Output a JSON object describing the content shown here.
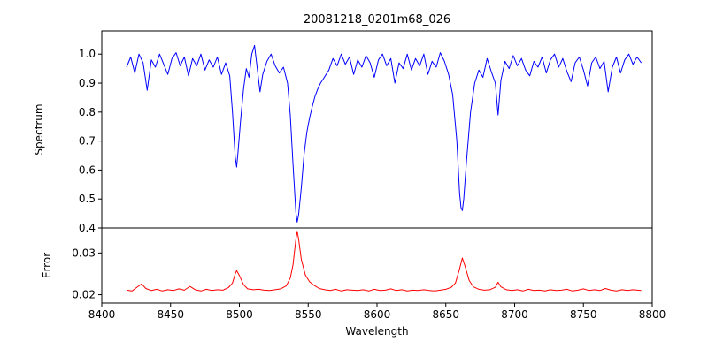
{
  "figure": {
    "title": "20081218_0201m68_026",
    "background": "#ffffff"
  },
  "chart_data": [
    {
      "type": "line",
      "title": "20081218_0201m68_026",
      "ylabel": "Spectrum",
      "xlabel": "",
      "xlim": [
        8400,
        8800
      ],
      "ylim": [
        0.4,
        1.08
      ],
      "grid": false,
      "legend": null,
      "yticks": [
        0.4,
        0.5,
        0.6,
        0.7,
        0.8,
        0.9,
        1.0
      ],
      "ytick_labels": [
        "0.4",
        "0.5",
        "0.6",
        "0.7",
        "0.8",
        "0.9",
        "1.0"
      ],
      "series": [
        {
          "name": "spectrum",
          "color": "#0000ff",
          "x": [
            8418,
            8421,
            8424,
            8427,
            8430,
            8433,
            8436,
            8439,
            8442,
            8445,
            8448,
            8451,
            8454,
            8457,
            8460,
            8463,
            8466,
            8469,
            8472,
            8475,
            8478,
            8481,
            8484,
            8487,
            8490,
            8493,
            8495,
            8497,
            8498,
            8499,
            8501,
            8503,
            8505,
            8507,
            8509,
            8511,
            8513,
            8515,
            8517,
            8520,
            8523,
            8526,
            8529,
            8532,
            8535,
            8537,
            8539,
            8541,
            8542,
            8543,
            8545,
            8547,
            8549,
            8551,
            8553,
            8555,
            8557,
            8559,
            8561,
            8563,
            8565,
            8568,
            8571,
            8574,
            8577,
            8580,
            8583,
            8586,
            8589,
            8592,
            8595,
            8598,
            8601,
            8604,
            8607,
            8610,
            8613,
            8616,
            8619,
            8622,
            8625,
            8628,
            8631,
            8634,
            8637,
            8640,
            8643,
            8646,
            8649,
            8652,
            8655,
            8658,
            8660,
            8661,
            8662,
            8663,
            8665,
            8668,
            8671,
            8674,
            8677,
            8680,
            8683,
            8686,
            8688,
            8690,
            8693,
            8696,
            8699,
            8702,
            8705,
            8708,
            8711,
            8714,
            8717,
            8720,
            8723,
            8726,
            8729,
            8732,
            8735,
            8738,
            8741,
            8744,
            8747,
            8750,
            8753,
            8756,
            8759,
            8762,
            8765,
            8768,
            8771,
            8774,
            8777,
            8780,
            8783,
            8786,
            8789,
            8792
          ],
          "y": [
            0.955,
            0.99,
            0.935,
            1.0,
            0.97,
            0.875,
            0.98,
            0.955,
            1.0,
            0.965,
            0.93,
            0.985,
            1.005,
            0.96,
            0.99,
            0.925,
            0.985,
            0.96,
            1.0,
            0.945,
            0.98,
            0.955,
            0.99,
            0.93,
            0.97,
            0.925,
            0.8,
            0.645,
            0.61,
            0.66,
            0.78,
            0.88,
            0.95,
            0.92,
            1.0,
            1.03,
            0.95,
            0.87,
            0.93,
            0.975,
            1.0,
            0.96,
            0.935,
            0.955,
            0.9,
            0.79,
            0.62,
            0.455,
            0.42,
            0.445,
            0.54,
            0.655,
            0.73,
            0.78,
            0.82,
            0.855,
            0.88,
            0.9,
            0.915,
            0.93,
            0.945,
            0.985,
            0.96,
            1.0,
            0.965,
            0.99,
            0.93,
            0.98,
            0.955,
            0.995,
            0.97,
            0.92,
            0.98,
            1.0,
            0.96,
            0.985,
            0.9,
            0.97,
            0.95,
            1.0,
            0.945,
            0.985,
            0.96,
            1.0,
            0.93,
            0.975,
            0.955,
            1.005,
            0.975,
            0.93,
            0.86,
            0.7,
            0.52,
            0.47,
            0.46,
            0.5,
            0.63,
            0.8,
            0.9,
            0.945,
            0.92,
            0.985,
            0.94,
            0.9,
            0.79,
            0.91,
            0.975,
            0.95,
            0.995,
            0.96,
            0.985,
            0.945,
            0.925,
            0.975,
            0.955,
            0.99,
            0.935,
            0.98,
            1.0,
            0.955,
            0.985,
            0.94,
            0.905,
            0.97,
            0.99,
            0.945,
            0.89,
            0.97,
            0.99,
            0.95,
            0.975,
            0.87,
            0.955,
            0.99,
            0.935,
            0.98,
            1.0,
            0.965,
            0.99,
            0.97
          ]
        }
      ]
    },
    {
      "type": "line",
      "ylabel": "Error",
      "xlabel": "Wavelength",
      "xlim": [
        8400,
        8800
      ],
      "ylim": [
        0.018,
        0.036
      ],
      "grid": false,
      "legend": null,
      "yticks": [
        0.02,
        0.03
      ],
      "ytick_labels": [
        "0.02",
        "0.03"
      ],
      "xticks": [
        8400,
        8450,
        8500,
        8550,
        8600,
        8650,
        8700,
        8750,
        8800
      ],
      "xtick_labels": [
        "8400",
        "8450",
        "8500",
        "8550",
        "8600",
        "8650",
        "8700",
        "8750",
        "8800"
      ],
      "series": [
        {
          "name": "error",
          "color": "#ff0000",
          "x": [
            8418,
            8422,
            8426,
            8429,
            8432,
            8436,
            8440,
            8444,
            8448,
            8452,
            8456,
            8460,
            8464,
            8468,
            8472,
            8476,
            8480,
            8484,
            8488,
            8492,
            8495,
            8497,
            8498,
            8500,
            8503,
            8506,
            8510,
            8514,
            8518,
            8522,
            8526,
            8530,
            8534,
            8537,
            8539,
            8541,
            8542,
            8543,
            8545,
            8548,
            8551,
            8554,
            8558,
            8562,
            8566,
            8570,
            8574,
            8578,
            8582,
            8586,
            8590,
            8594,
            8598,
            8602,
            8606,
            8610,
            8614,
            8618,
            8622,
            8626,
            8630,
            8634,
            8638,
            8642,
            8646,
            8650,
            8654,
            8657,
            8660,
            8662,
            8664,
            8667,
            8670,
            8674,
            8678,
            8682,
            8686,
            8688,
            8690,
            8694,
            8698,
            8702,
            8706,
            8710,
            8714,
            8718,
            8722,
            8726,
            8730,
            8734,
            8738,
            8742,
            8746,
            8750,
            8754,
            8758,
            8762,
            8766,
            8770,
            8774,
            8778,
            8782,
            8786,
            8789,
            8792
          ],
          "y": [
            0.0211,
            0.0209,
            0.0219,
            0.0226,
            0.0215,
            0.021,
            0.0213,
            0.0209,
            0.0212,
            0.021,
            0.0214,
            0.0211,
            0.022,
            0.0212,
            0.0209,
            0.0213,
            0.021,
            0.0212,
            0.0211,
            0.0217,
            0.0228,
            0.025,
            0.0258,
            0.0246,
            0.0224,
            0.0214,
            0.0212,
            0.0213,
            0.0211,
            0.021,
            0.0212,
            0.0214,
            0.0221,
            0.024,
            0.0272,
            0.0332,
            0.0352,
            0.0334,
            0.0284,
            0.0247,
            0.0231,
            0.0223,
            0.0215,
            0.0212,
            0.021,
            0.0213,
            0.0209,
            0.0212,
            0.0211,
            0.021,
            0.0212,
            0.0209,
            0.0213,
            0.021,
            0.0211,
            0.0214,
            0.021,
            0.0212,
            0.0209,
            0.0211,
            0.021,
            0.0212,
            0.021,
            0.0209,
            0.0211,
            0.0213,
            0.0218,
            0.0228,
            0.0262,
            0.0288,
            0.0268,
            0.0234,
            0.0219,
            0.0213,
            0.0211,
            0.0212,
            0.0218,
            0.023,
            0.0219,
            0.0212,
            0.021,
            0.0212,
            0.0209,
            0.0213,
            0.021,
            0.0211,
            0.0209,
            0.0212,
            0.021,
            0.0211,
            0.0213,
            0.0209,
            0.0211,
            0.0214,
            0.021,
            0.0212,
            0.021,
            0.0215,
            0.0211,
            0.0209,
            0.0212,
            0.021,
            0.0212,
            0.0211,
            0.021
          ]
        }
      ]
    }
  ]
}
